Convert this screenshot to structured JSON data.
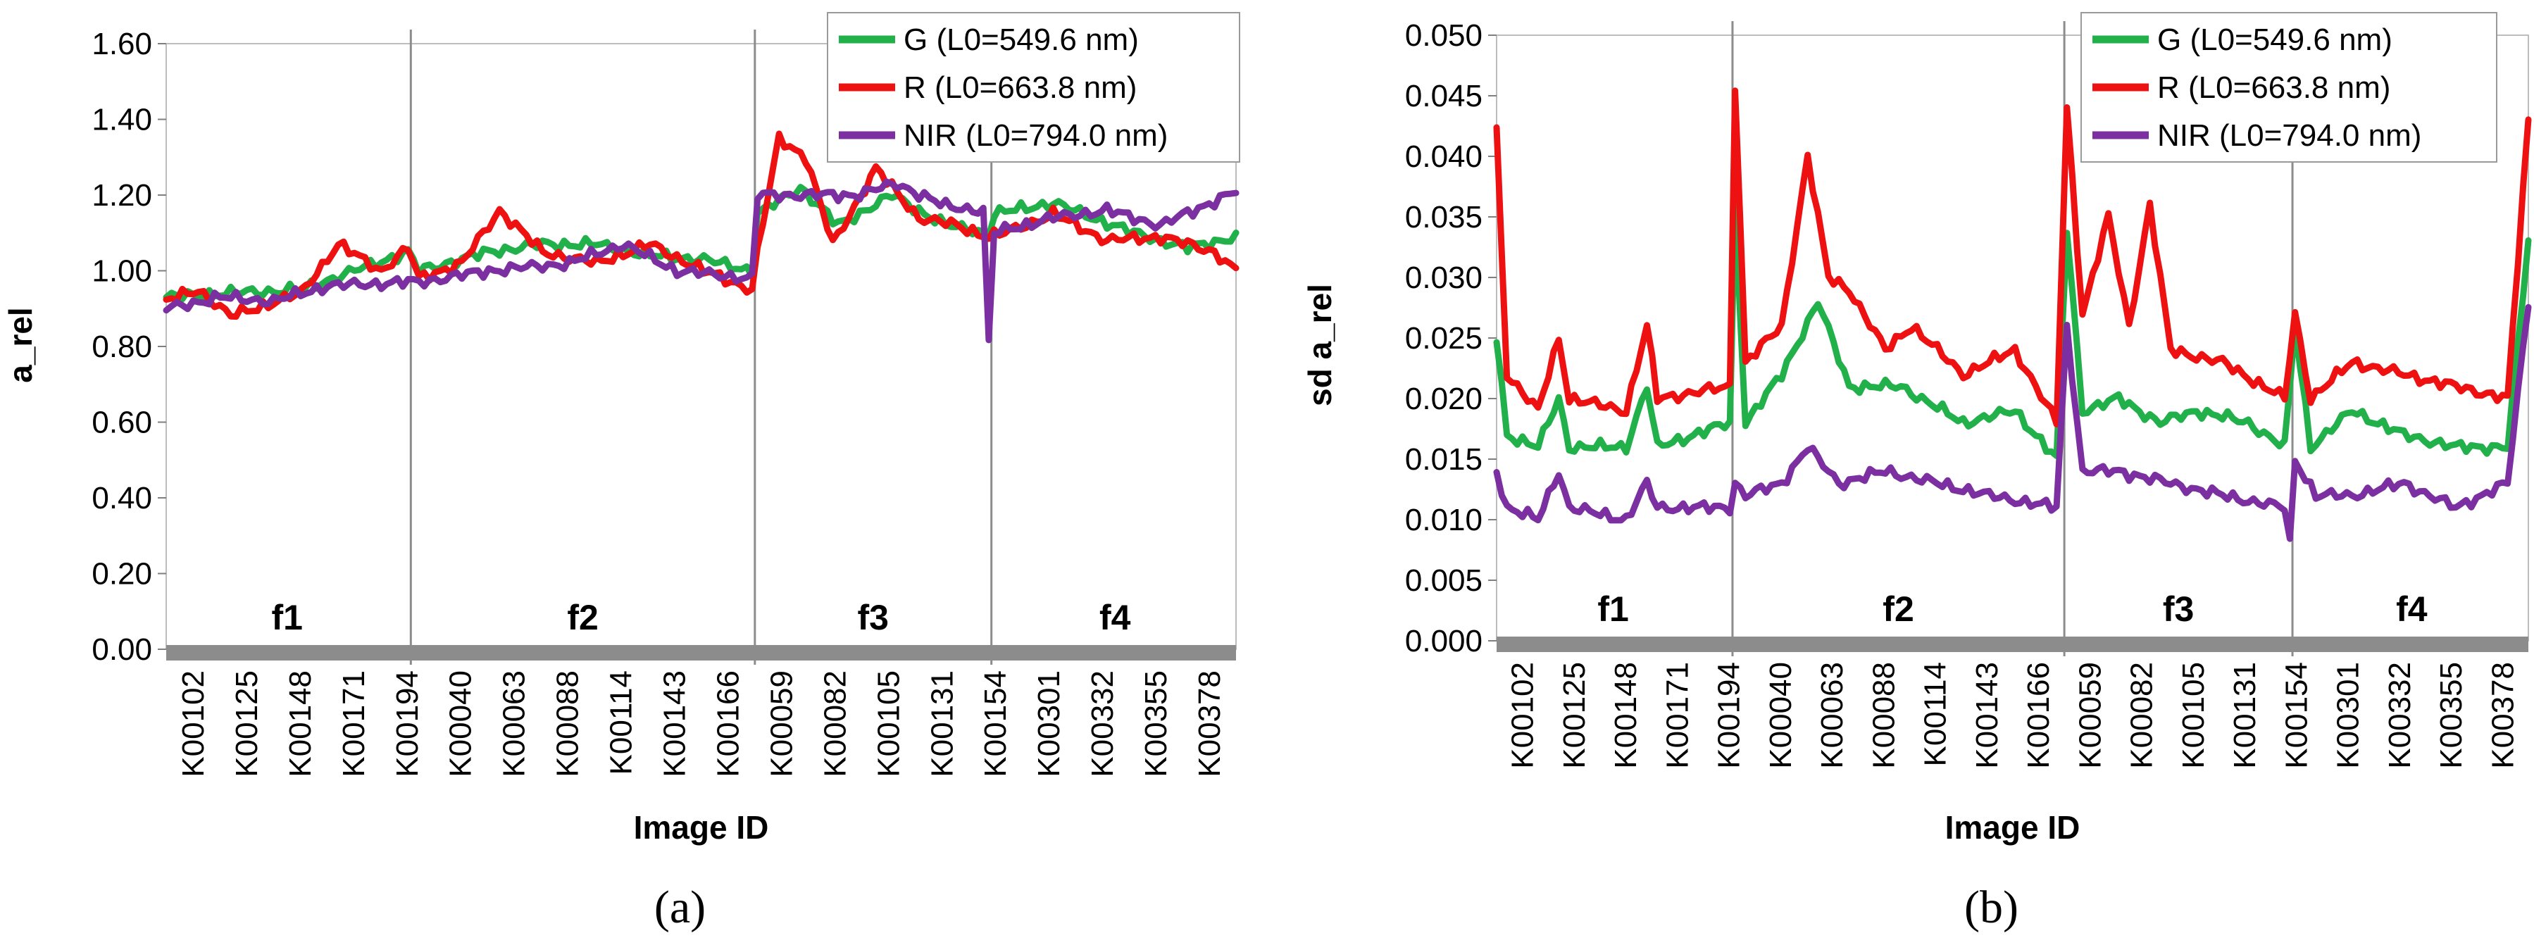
{
  "chart_data": [
    {
      "id": "a",
      "type": "line",
      "caption": "(a)",
      "xlabel": "Image ID",
      "ylabel": "a_rel",
      "ylim": [
        0,
        1.6
      ],
      "yticks": [
        "0.00",
        "0.20",
        "0.40",
        "0.60",
        "0.80",
        "1.00",
        "1.20",
        "1.40",
        "1.60"
      ],
      "ytick_values": [
        0,
        0.2,
        0.4,
        0.6,
        0.8,
        1.0,
        1.2,
        1.4,
        1.6
      ],
      "categories": [
        "K00102",
        "K00125",
        "K00148",
        "K00171",
        "K00194",
        "K00040",
        "K00063",
        "K00088",
        "K00114",
        "K00143",
        "K00166",
        "K00059",
        "K00082",
        "K00105",
        "K00131",
        "K00154",
        "K00301",
        "K00332",
        "K00355",
        "K00378"
      ],
      "n_points": 200,
      "groups": [
        {
          "label": "f1",
          "start": 0,
          "end": 46
        },
        {
          "label": "f2",
          "start": 46,
          "end": 110
        },
        {
          "label": "f3",
          "start": 110,
          "end": 154
        },
        {
          "label": "f4",
          "start": 154,
          "end": 200
        }
      ],
      "legend_position": "top-right",
      "series": [
        {
          "name": "G (L0=549.6 nm)",
          "color": "#22b04b",
          "keyframes": [
            [
              0,
              0.93
            ],
            [
              10,
              0.94
            ],
            [
              25,
              0.95
            ],
            [
              35,
              1.0
            ],
            [
              45,
              1.05
            ],
            [
              47,
              1.0
            ],
            [
              60,
              1.05
            ],
            [
              70,
              1.07
            ],
            [
              80,
              1.07
            ],
            [
              90,
              1.04
            ],
            [
              100,
              1.03
            ],
            [
              109,
              1.0
            ],
            [
              110,
              1.15
            ],
            [
              118,
              1.22
            ],
            [
              125,
              1.12
            ],
            [
              135,
              1.2
            ],
            [
              145,
              1.12
            ],
            [
              153,
              1.1
            ],
            [
              154,
              1.15
            ],
            [
              165,
              1.18
            ],
            [
              180,
              1.1
            ],
            [
              190,
              1.06
            ],
            [
              199,
              1.09
            ]
          ]
        },
        {
          "name": "R (L0=663.8 nm)",
          "color": "#ee1111",
          "keyframes": [
            [
              0,
              0.92
            ],
            [
              6,
              0.95
            ],
            [
              12,
              0.88
            ],
            [
              25,
              0.94
            ],
            [
              32,
              1.07
            ],
            [
              40,
              1.0
            ],
            [
              45,
              1.06
            ],
            [
              47,
              0.98
            ],
            [
              55,
              1.02
            ],
            [
              62,
              1.16
            ],
            [
              70,
              1.05
            ],
            [
              80,
              1.02
            ],
            [
              90,
              1.07
            ],
            [
              100,
              1.0
            ],
            [
              109,
              0.95
            ],
            [
              110,
              1.05
            ],
            [
              114,
              1.35
            ],
            [
              119,
              1.3
            ],
            [
              124,
              1.07
            ],
            [
              132,
              1.27
            ],
            [
              140,
              1.14
            ],
            [
              147,
              1.12
            ],
            [
              153,
              1.09
            ],
            [
              156,
              1.1
            ],
            [
              165,
              1.15
            ],
            [
              175,
              1.08
            ],
            [
              185,
              1.09
            ],
            [
              195,
              1.05
            ],
            [
              199,
              1.0
            ]
          ]
        },
        {
          "name": "NIR (L0=794.0 nm)",
          "color": "#7b2fa0",
          "keyframes": [
            [
              0,
              0.9
            ],
            [
              10,
              0.93
            ],
            [
              20,
              0.92
            ],
            [
              30,
              0.96
            ],
            [
              45,
              0.97
            ],
            [
              47,
              0.97
            ],
            [
              60,
              1.0
            ],
            [
              75,
              1.02
            ],
            [
              85,
              1.07
            ],
            [
              95,
              1.0
            ],
            [
              109,
              0.98
            ],
            [
              110,
              1.2
            ],
            [
              120,
              1.2
            ],
            [
              128,
              1.2
            ],
            [
              136,
              1.23
            ],
            [
              145,
              1.17
            ],
            [
              152,
              1.16
            ],
            [
              153,
              0.81
            ],
            [
              154,
              1.1
            ],
            [
              165,
              1.14
            ],
            [
              175,
              1.16
            ],
            [
              185,
              1.12
            ],
            [
              199,
              1.21
            ]
          ]
        }
      ]
    },
    {
      "id": "b",
      "type": "line",
      "caption": "(b)",
      "xlabel": "Image ID",
      "ylabel": "sd a_rel",
      "ylim": [
        0,
        0.05
      ],
      "yticks": [
        "0.000",
        "0.005",
        "0.010",
        "0.015",
        "0.020",
        "0.025",
        "0.030",
        "0.035",
        "0.040",
        "0.045",
        "0.050"
      ],
      "ytick_values": [
        0,
        0.005,
        0.01,
        0.015,
        0.02,
        0.025,
        0.03,
        0.035,
        0.04,
        0.045,
        0.05
      ],
      "categories": [
        "K00102",
        "K00125",
        "K00148",
        "K00171",
        "K00194",
        "K00040",
        "K00063",
        "K00088",
        "K00114",
        "K00143",
        "K00166",
        "K00059",
        "K00082",
        "K00105",
        "K00131",
        "K00154",
        "K00301",
        "K00332",
        "K00355",
        "K00378"
      ],
      "n_points": 200,
      "groups": [
        {
          "label": "f1",
          "start": 0,
          "end": 46
        },
        {
          "label": "f2",
          "start": 46,
          "end": 110
        },
        {
          "label": "f3",
          "start": 110,
          "end": 154
        },
        {
          "label": "f4",
          "start": 154,
          "end": 200
        }
      ],
      "legend_position": "top-right",
      "series": [
        {
          "name": "G (L0=549.6 nm)",
          "color": "#22b04b",
          "keyframes": [
            [
              0,
              0.025
            ],
            [
              2,
              0.017
            ],
            [
              8,
              0.016
            ],
            [
              12,
              0.02
            ],
            [
              14,
              0.016
            ],
            [
              25,
              0.016
            ],
            [
              29,
              0.021
            ],
            [
              31,
              0.016
            ],
            [
              45,
              0.018
            ],
            [
              46,
              0.036
            ],
            [
              48,
              0.018
            ],
            [
              55,
              0.022
            ],
            [
              62,
              0.028
            ],
            [
              68,
              0.021
            ],
            [
              78,
              0.021
            ],
            [
              90,
              0.018
            ],
            [
              100,
              0.019
            ],
            [
              108,
              0.015
            ],
            [
              110,
              0.034
            ],
            [
              113,
              0.019
            ],
            [
              120,
              0.02
            ],
            [
              128,
              0.018
            ],
            [
              135,
              0.019
            ],
            [
              145,
              0.018
            ],
            [
              152,
              0.016
            ],
            [
              154,
              0.026
            ],
            [
              157,
              0.016
            ],
            [
              165,
              0.019
            ],
            [
              175,
              0.017
            ],
            [
              185,
              0.016
            ],
            [
              195,
              0.016
            ],
            [
              199,
              0.033
            ]
          ]
        },
        {
          "name": "R (L0=663.8 nm)",
          "color": "#ee1111",
          "keyframes": [
            [
              0,
              0.042
            ],
            [
              2,
              0.022
            ],
            [
              8,
              0.019
            ],
            [
              12,
              0.025
            ],
            [
              14,
              0.02
            ],
            [
              25,
              0.019
            ],
            [
              29,
              0.026
            ],
            [
              31,
              0.02
            ],
            [
              45,
              0.021
            ],
            [
              46,
              0.046
            ],
            [
              48,
              0.023
            ],
            [
              55,
              0.026
            ],
            [
              60,
              0.04
            ],
            [
              64,
              0.03
            ],
            [
              68,
              0.029
            ],
            [
              75,
              0.024
            ],
            [
              80,
              0.026
            ],
            [
              90,
              0.022
            ],
            [
              100,
              0.024
            ],
            [
              108,
              0.018
            ],
            [
              110,
              0.044
            ],
            [
              113,
              0.027
            ],
            [
              118,
              0.035
            ],
            [
              122,
              0.026
            ],
            [
              126,
              0.036
            ],
            [
              130,
              0.024
            ],
            [
              140,
              0.023
            ],
            [
              152,
              0.02
            ],
            [
              154,
              0.027
            ],
            [
              157,
              0.02
            ],
            [
              165,
              0.023
            ],
            [
              175,
              0.022
            ],
            [
              185,
              0.021
            ],
            [
              195,
              0.02
            ],
            [
              199,
              0.043
            ]
          ]
        },
        {
          "name": "NIR (L0=794.0 nm)",
          "color": "#7b2fa0",
          "keyframes": [
            [
              0,
              0.014
            ],
            [
              2,
              0.011
            ],
            [
              8,
              0.01
            ],
            [
              12,
              0.014
            ],
            [
              14,
              0.011
            ],
            [
              25,
              0.01
            ],
            [
              29,
              0.013
            ],
            [
              31,
              0.011
            ],
            [
              45,
              0.011
            ],
            [
              46,
              0.013
            ],
            [
              48,
              0.012
            ],
            [
              55,
              0.013
            ],
            [
              60,
              0.016
            ],
            [
              66,
              0.013
            ],
            [
              75,
              0.014
            ],
            [
              85,
              0.013
            ],
            [
              95,
              0.012
            ],
            [
              108,
              0.011
            ],
            [
              110,
              0.026
            ],
            [
              113,
              0.014
            ],
            [
              120,
              0.014
            ],
            [
              130,
              0.013
            ],
            [
              140,
              0.012
            ],
            [
              152,
              0.011
            ],
            [
              153,
              0.008
            ],
            [
              154,
              0.015
            ],
            [
              158,
              0.012
            ],
            [
              165,
              0.012
            ],
            [
              175,
              0.013
            ],
            [
              185,
              0.011
            ],
            [
              195,
              0.013
            ],
            [
              199,
              0.028
            ]
          ]
        }
      ]
    }
  ]
}
